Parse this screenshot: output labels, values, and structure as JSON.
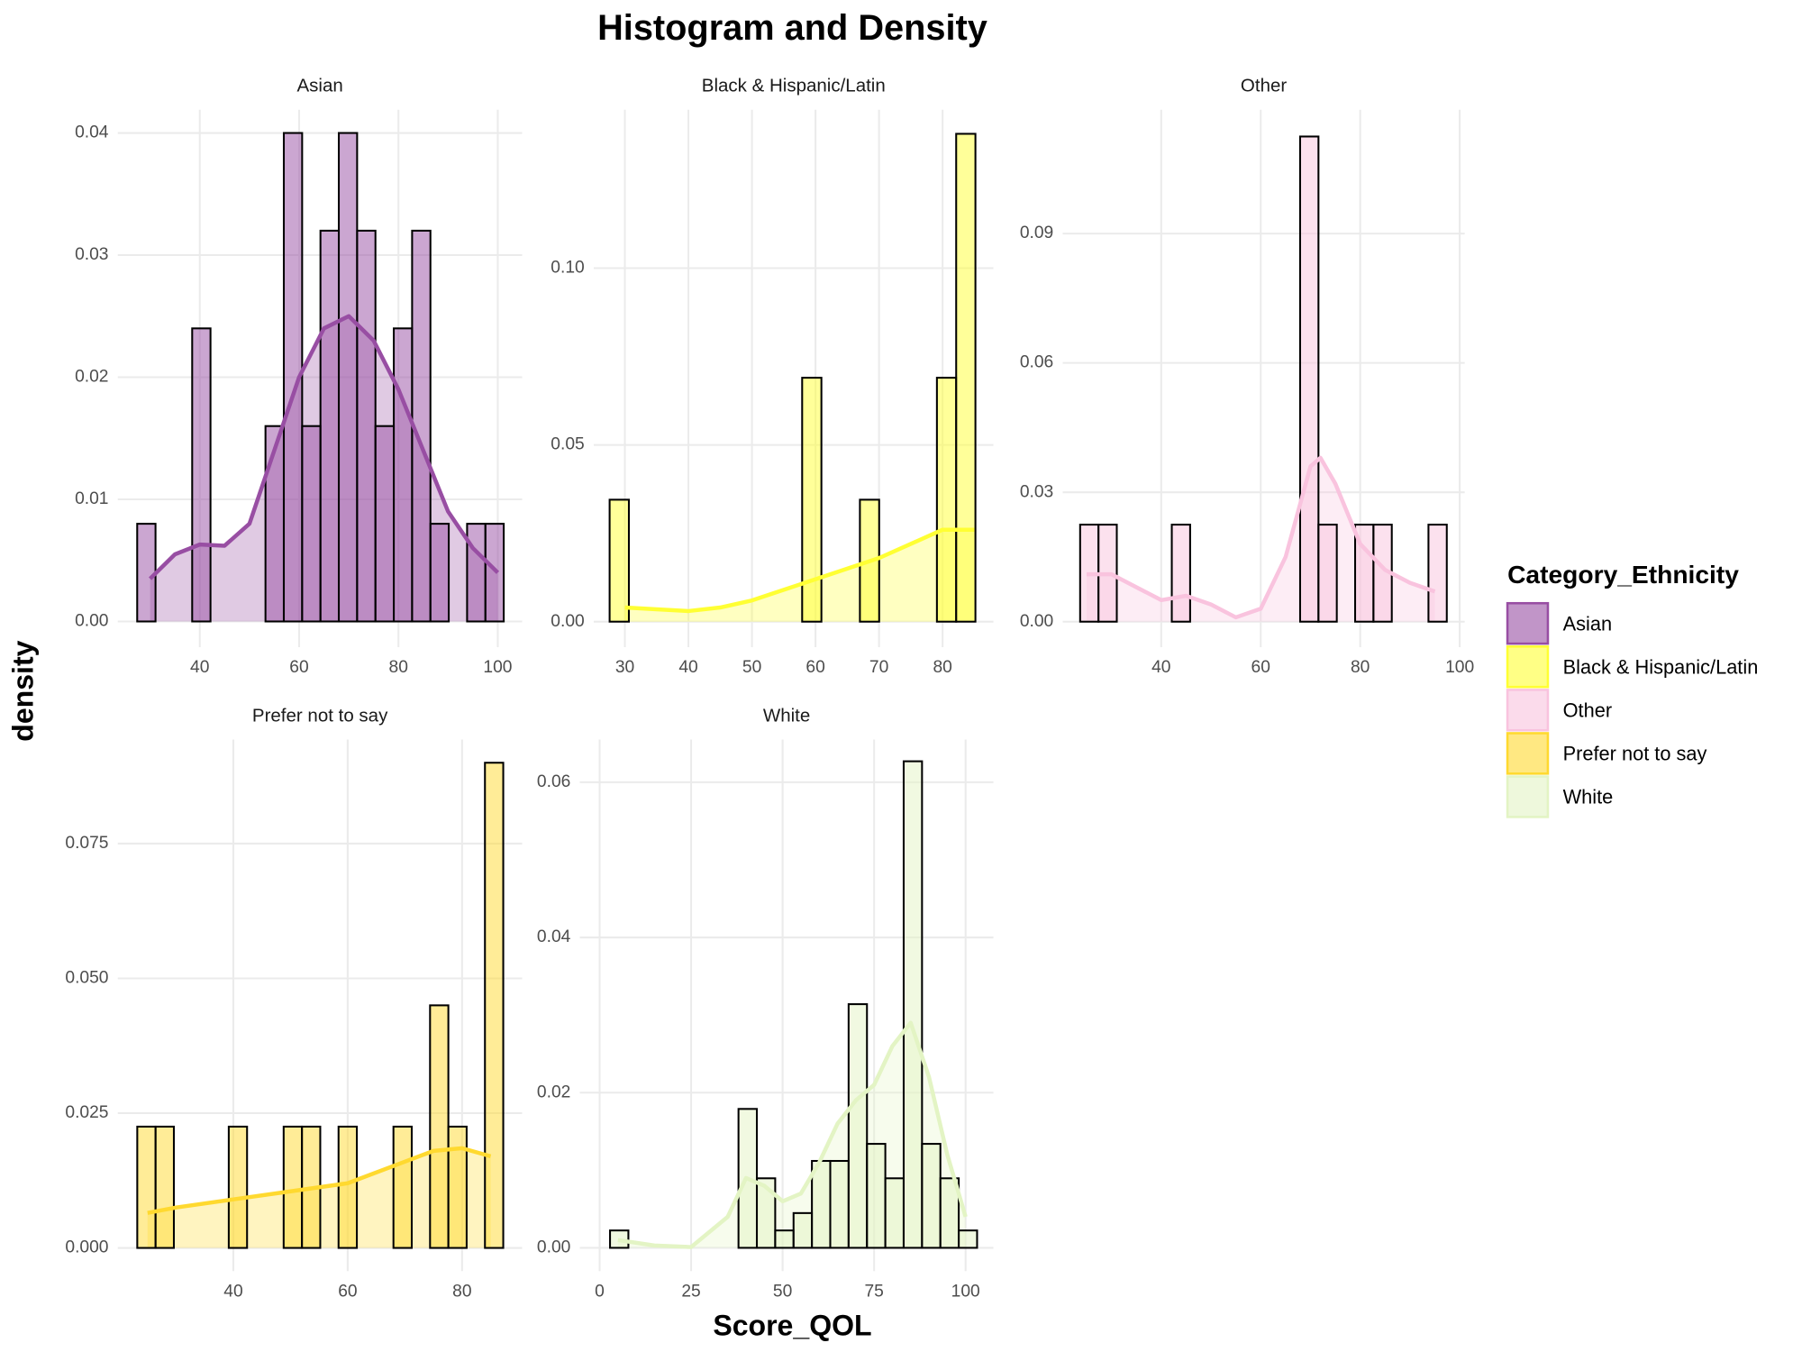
{
  "chart_data": {
    "type": "histogram",
    "title": "Histogram and Density",
    "xlabel": "Score_QOL",
    "ylabel": "density",
    "legend_title": "Category_Ethnicity",
    "grid": true,
    "facets": [
      {
        "name": "Asian",
        "color": "#984EA3",
        "bins": [
          27.4,
          31.09,
          34.78,
          38.47,
          42.16,
          45.85,
          49.54,
          53.23,
          56.92,
          60.61,
          64.3,
          67.99,
          71.68,
          75.37,
          79.06,
          82.75,
          86.44,
          90.13,
          93.82,
          97.51,
          101.2
        ],
        "values": [
          0.008,
          0,
          0,
          0.024,
          0,
          0,
          0,
          0.016,
          0.04,
          0.016,
          0.032,
          0.04,
          0.032,
          0.016,
          0.024,
          0.032,
          0.008,
          0,
          0.008,
          0.008
        ],
        "density": {
          "x": [
            30,
            35,
            40,
            45,
            50,
            55,
            60,
            65,
            70,
            75,
            80,
            85,
            90,
            95,
            100
          ],
          "y": [
            0.0035,
            0.0055,
            0.0063,
            0.0062,
            0.008,
            0.014,
            0.02,
            0.024,
            0.025,
            0.023,
            0.019,
            0.014,
            0.009,
            0.006,
            0.004
          ]
        },
        "xlim": [
          23.5,
          104.9
        ],
        "ylim": [
          -0.0021,
          0.0419
        ],
        "xticks": [
          40,
          60,
          80,
          100
        ],
        "yticks": [
          {
            "value": 0,
            "label": "0.00"
          },
          {
            "value": 0.01,
            "label": "0.01"
          },
          {
            "value": 0.02,
            "label": "0.02"
          },
          {
            "value": 0.03,
            "label": "0.03"
          },
          {
            "value": 0.04,
            "label": "0.04"
          }
        ]
      },
      {
        "name": "Black & Hispanic/Latin",
        "color": "#FFFF33",
        "bins": [
          27.6,
          30.63,
          33.66,
          36.69,
          39.72,
          42.75,
          45.78,
          48.81,
          51.84,
          54.87,
          57.9,
          60.93,
          63.96,
          66.99,
          70.02,
          73.05,
          76.08,
          79.11,
          82.14,
          85.17
        ],
        "values": [
          0.0345,
          0,
          0,
          0,
          0,
          0,
          0,
          0,
          0,
          0,
          0.069,
          0,
          0,
          0.0345,
          0,
          0,
          0,
          0.069,
          0.138
        ],
        "density": {
          "x": [
            30,
            35,
            40,
            45,
            50,
            55,
            60,
            65,
            70,
            75,
            80,
            85
          ],
          "y": [
            0.004,
            0.0035,
            0.003,
            0.004,
            0.006,
            0.009,
            0.012,
            0.015,
            0.018,
            0.022,
            0.026,
            0.026
          ]
        },
        "xlim": [
          25.1,
          88
        ],
        "ylim": [
          -0.0072,
          0.1448
        ],
        "xticks": [
          30,
          40,
          50,
          60,
          70,
          80
        ],
        "yticks": [
          {
            "value": 0,
            "label": "0.00"
          },
          {
            "value": 0.05,
            "label": "0.05"
          },
          {
            "value": 0.1,
            "label": "0.10"
          }
        ]
      },
      {
        "name": "Other",
        "color": "#F9C3DE",
        "bins": [
          23.7,
          27.385,
          31.07,
          34.755,
          38.44,
          42.125,
          45.81,
          49.495,
          53.18,
          56.865,
          60.55,
          64.235,
          67.92,
          71.605,
          75.29,
          78.975,
          82.66,
          86.345,
          90.03,
          93.715,
          97.4
        ],
        "values": [
          0.0225,
          0.0225,
          0,
          0,
          0,
          0.0225,
          0,
          0,
          0,
          0,
          0,
          0,
          0.1125,
          0.0225,
          0,
          0.0225,
          0.0225,
          0,
          0,
          0.0225
        ],
        "density": {
          "x": [
            25,
            30,
            35,
            40,
            45,
            50,
            55,
            60,
            65,
            70,
            72,
            75,
            80,
            85,
            90,
            95
          ],
          "y": [
            0.011,
            0.011,
            0.008,
            0.005,
            0.006,
            0.004,
            0.001,
            0.003,
            0.015,
            0.036,
            0.038,
            0.032,
            0.018,
            0.012,
            0.009,
            0.007
          ]
        },
        "xlim": [
          20.2,
          101
        ],
        "ylim": [
          -0.0059,
          0.1187
        ],
        "xticks": [
          40,
          60,
          80,
          100
        ],
        "yticks": [
          {
            "value": 0,
            "label": "0.00"
          },
          {
            "value": 0.03,
            "label": "0.03"
          },
          {
            "value": 0.06,
            "label": "0.06"
          },
          {
            "value": 0.09,
            "label": "0.09"
          }
        ]
      },
      {
        "name": "Prefer not to say",
        "color": "#FFD92F",
        "bins": [
          23.2,
          26.4,
          29.6,
          32.8,
          36,
          39.2,
          42.4,
          45.6,
          48.8,
          52,
          55.2,
          58.4,
          61.6,
          64.8,
          68,
          71.2,
          74.4,
          77.6,
          80.8,
          84,
          87.2
        ],
        "values": [
          0.0225,
          0.0225,
          0,
          0,
          0,
          0.0225,
          0,
          0,
          0.0225,
          0.0225,
          0,
          0.0225,
          0,
          0,
          0.0225,
          0,
          0.045,
          0.0225,
          0,
          0.09
        ],
        "density": {
          "x": [
            25,
            30,
            40,
            50,
            60,
            70,
            75,
            80,
            85
          ],
          "y": [
            0.0065,
            0.0075,
            0.009,
            0.0105,
            0.012,
            0.016,
            0.018,
            0.0185,
            0.017
          ]
        },
        "xlim": [
          19.8,
          90.5
        ],
        "ylim": [
          -0.0043,
          0.0943
        ],
        "xticks": [
          40,
          60,
          80
        ],
        "yticks": [
          {
            "value": 0,
            "label": "0.000"
          },
          {
            "value": 0.025,
            "label": "0.025"
          },
          {
            "value": 0.05,
            "label": "0.050"
          },
          {
            "value": 0.075,
            "label": "0.075"
          }
        ]
      },
      {
        "name": "White",
        "color": "#E3F4C4",
        "bins": [
          2.84,
          7.855,
          12.87,
          17.885,
          22.9,
          27.915,
          32.93,
          37.945,
          42.96,
          47.975,
          52.99,
          58.005,
          63.02,
          68.035,
          73.05,
          78.065,
          83.08,
          88.095,
          93.11,
          98.125,
          103.14
        ],
        "values": [
          0.00224,
          0,
          0,
          0,
          0,
          0,
          0,
          0.0179,
          0.00896,
          0.00224,
          0.00448,
          0.0112,
          0.0112,
          0.0314,
          0.0134,
          0.00896,
          0.0627,
          0.0134,
          0.00896,
          0.00224
        ],
        "density": {
          "x": [
            5,
            15,
            25,
            35,
            40,
            45,
            50,
            55,
            60,
            65,
            70,
            75,
            80,
            85,
            90,
            95,
            100
          ],
          "y": [
            0.001,
            0.0003,
            0.0001,
            0.004,
            0.009,
            0.008,
            0.006,
            0.007,
            0.011,
            0.016,
            0.019,
            0.021,
            0.026,
            0.029,
            0.022,
            0.012,
            0.004
          ]
        },
        "xlim": [
          -5.4,
          107.6
        ],
        "ylim": [
          -0.003,
          0.0655
        ],
        "xticks": [
          0,
          25,
          50,
          75,
          100
        ],
        "yticks": [
          {
            "value": 0,
            "label": "0.00"
          },
          {
            "value": 0.02,
            "label": "0.02"
          },
          {
            "value": 0.04,
            "label": "0.04"
          },
          {
            "value": 0.06,
            "label": "0.06"
          }
        ]
      }
    ]
  }
}
